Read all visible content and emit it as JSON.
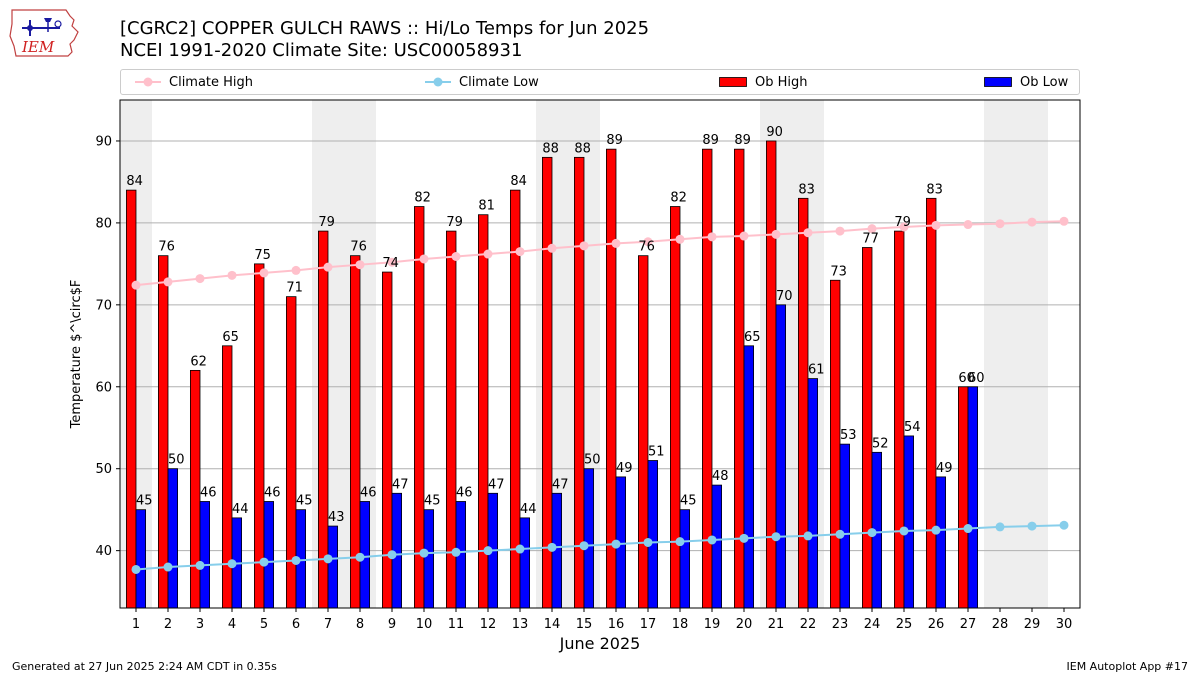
{
  "header": {
    "logo_text": "IEM",
    "title": "[CGRC2] COPPER GULCH RAWS :: Hi/Lo Temps for Jun 2025",
    "subtitle": "NCEI 1991-2020 Climate Site: USC00058931"
  },
  "legend": {
    "climate_high": "Climate High",
    "climate_low": "Climate Low",
    "ob_high": "Ob High",
    "ob_low": "Ob Low"
  },
  "chart_data": {
    "type": "bar",
    "title": "[CGRC2] COPPER GULCH RAWS :: Hi/Lo Temps for Jun 2025",
    "xlabel": "June 2025",
    "ylabel": "Temperature $^\\circ$F",
    "ylim": [
      33,
      95
    ],
    "yticks": [
      40,
      50,
      60,
      70,
      80,
      90
    ],
    "grid": "horizontal",
    "legend_position": "top",
    "categories": [
      "1",
      "2",
      "3",
      "4",
      "5",
      "6",
      "7",
      "8",
      "9",
      "10",
      "11",
      "12",
      "13",
      "14",
      "15",
      "16",
      "17",
      "18",
      "19",
      "20",
      "21",
      "22",
      "23",
      "24",
      "25",
      "26",
      "27",
      "28",
      "29",
      "30"
    ],
    "weekend_days": [
      1,
      7,
      8,
      14,
      15,
      21,
      22,
      28,
      29
    ],
    "series": [
      {
        "name": "Ob High",
        "type": "bar",
        "color": "#ff0000",
        "values": [
          84,
          76,
          62,
          65,
          75,
          71,
          79,
          76,
          74,
          82,
          79,
          81,
          84,
          88,
          88,
          89,
          76,
          82,
          89,
          89,
          90,
          83,
          73,
          77,
          79,
          83,
          60,
          null,
          null,
          null
        ]
      },
      {
        "name": "Ob Low",
        "type": "bar",
        "color": "#0000ff",
        "values": [
          45,
          50,
          46,
          44,
          46,
          45,
          43,
          46,
          47,
          45,
          46,
          47,
          44,
          47,
          50,
          49,
          51,
          45,
          48,
          65,
          70,
          61,
          53,
          52,
          54,
          49,
          60,
          null,
          null,
          null
        ]
      },
      {
        "name": "Climate High",
        "type": "line",
        "color": "#ffc0cb",
        "values": [
          72.4,
          72.8,
          73.2,
          73.6,
          73.9,
          74.2,
          74.6,
          74.9,
          75.2,
          75.6,
          75.9,
          76.2,
          76.5,
          76.9,
          77.2,
          77.5,
          77.7,
          78.0,
          78.3,
          78.4,
          78.6,
          78.8,
          79.0,
          79.3,
          79.5,
          79.7,
          79.8,
          79.9,
          80.1,
          80.2
        ]
      },
      {
        "name": "Climate Low",
        "type": "line",
        "color": "#87ceeb",
        "values": [
          37.7,
          38.0,
          38.2,
          38.4,
          38.6,
          38.8,
          39.0,
          39.2,
          39.5,
          39.7,
          39.8,
          40.0,
          40.2,
          40.4,
          40.6,
          40.8,
          41.0,
          41.1,
          41.3,
          41.5,
          41.7,
          41.8,
          42.0,
          42.2,
          42.4,
          42.5,
          42.7,
          42.9,
          43.0,
          43.1
        ]
      }
    ]
  },
  "footer": {
    "generated": "Generated at 27 Jun 2025 2:24 AM CDT in 0.35s",
    "app": "IEM Autoplot App #17"
  }
}
